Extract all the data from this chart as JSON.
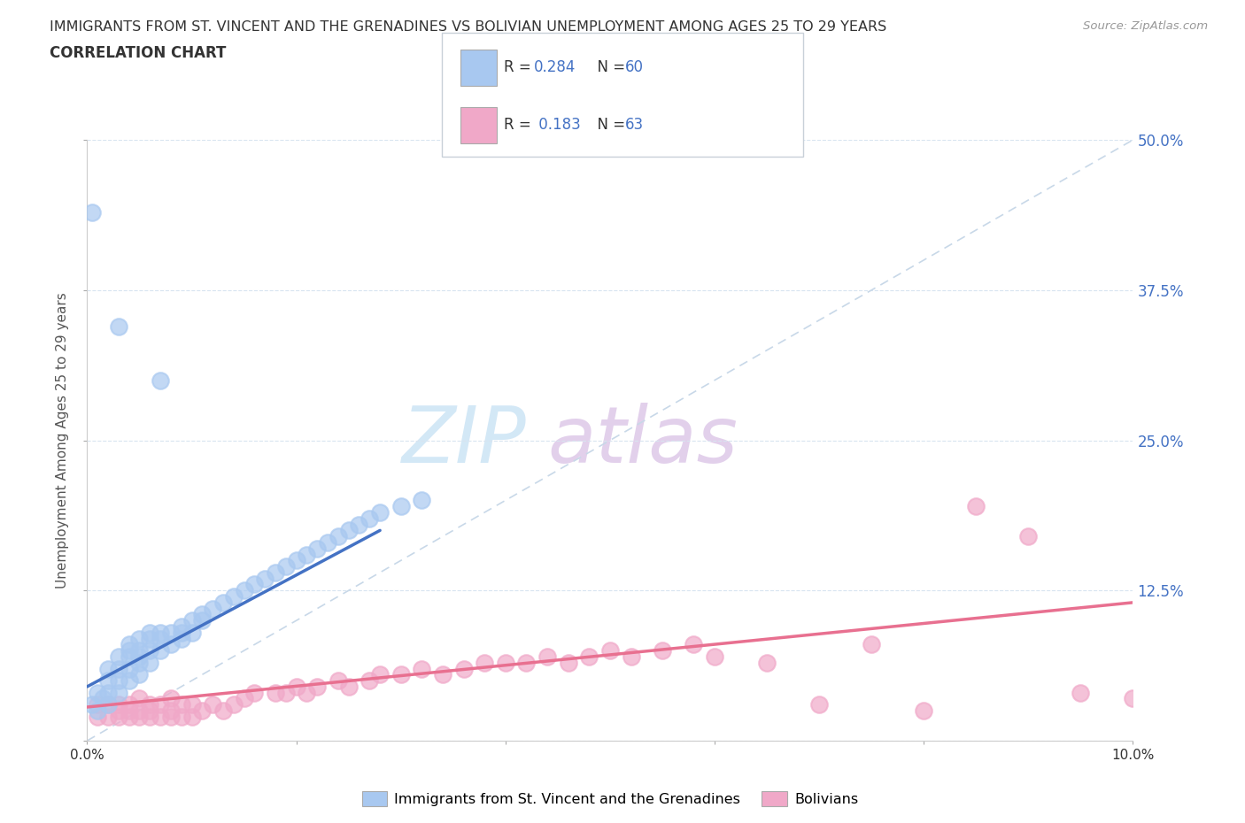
{
  "title_line1": "IMMIGRANTS FROM ST. VINCENT AND THE GRENADINES VS BOLIVIAN UNEMPLOYMENT AMONG AGES 25 TO 29 YEARS",
  "title_line2": "CORRELATION CHART",
  "source_text": "Source: ZipAtlas.com",
  "ylabel": "Unemployment Among Ages 25 to 29 years",
  "xmin": 0.0,
  "xmax": 0.1,
  "ymin": 0.0,
  "ymax": 0.5,
  "ytick_vals": [
    0.0,
    0.125,
    0.25,
    0.375,
    0.5
  ],
  "ytick_labels": [
    "",
    "12.5%",
    "25.0%",
    "37.5%",
    "50.0%"
  ],
  "xtick_vals": [
    0.0,
    0.02,
    0.04,
    0.06,
    0.08,
    0.1
  ],
  "xtick_labels": [
    "0.0%",
    "",
    "",
    "",
    "",
    "10.0%"
  ],
  "blue_color": "#a8c8f0",
  "pink_color": "#f0a8c8",
  "blue_line_color": "#4472c4",
  "pink_line_color": "#e87090",
  "diag_color": "#c8d8e8",
  "grid_color": "#d8e4f0",
  "legend_box_color": "#f0f4f8",
  "legend_border_color": "#c8d0d8",
  "stat_color": "#4472c4",
  "title_color": "#333333",
  "source_color": "#999999",
  "ylabel_color": "#555555",
  "ytick_color": "#4472c4",
  "blue_scatter_x": [
    0.0005,
    0.001,
    0.001,
    0.0015,
    0.002,
    0.002,
    0.002,
    0.002,
    0.003,
    0.003,
    0.003,
    0.003,
    0.004,
    0.004,
    0.004,
    0.004,
    0.004,
    0.005,
    0.005,
    0.005,
    0.005,
    0.005,
    0.006,
    0.006,
    0.006,
    0.006,
    0.007,
    0.007,
    0.007,
    0.008,
    0.008,
    0.009,
    0.009,
    0.009,
    0.01,
    0.01,
    0.011,
    0.011,
    0.012,
    0.013,
    0.014,
    0.015,
    0.016,
    0.017,
    0.018,
    0.019,
    0.02,
    0.021,
    0.022,
    0.023,
    0.024,
    0.025,
    0.026,
    0.027,
    0.028,
    0.03,
    0.032,
    0.0005,
    0.003,
    0.007
  ],
  "blue_scatter_y": [
    0.03,
    0.025,
    0.04,
    0.035,
    0.03,
    0.04,
    0.05,
    0.06,
    0.04,
    0.05,
    0.06,
    0.07,
    0.05,
    0.06,
    0.07,
    0.075,
    0.08,
    0.055,
    0.065,
    0.07,
    0.075,
    0.085,
    0.065,
    0.075,
    0.085,
    0.09,
    0.075,
    0.085,
    0.09,
    0.08,
    0.09,
    0.085,
    0.09,
    0.095,
    0.09,
    0.1,
    0.1,
    0.105,
    0.11,
    0.115,
    0.12,
    0.125,
    0.13,
    0.135,
    0.14,
    0.145,
    0.15,
    0.155,
    0.16,
    0.165,
    0.17,
    0.175,
    0.18,
    0.185,
    0.19,
    0.195,
    0.2,
    0.44,
    0.345,
    0.3
  ],
  "pink_scatter_x": [
    0.001,
    0.001,
    0.002,
    0.002,
    0.003,
    0.003,
    0.003,
    0.004,
    0.004,
    0.004,
    0.005,
    0.005,
    0.005,
    0.006,
    0.006,
    0.006,
    0.007,
    0.007,
    0.008,
    0.008,
    0.008,
    0.009,
    0.009,
    0.01,
    0.01,
    0.011,
    0.012,
    0.013,
    0.014,
    0.015,
    0.016,
    0.018,
    0.019,
    0.02,
    0.021,
    0.022,
    0.024,
    0.025,
    0.027,
    0.028,
    0.03,
    0.032,
    0.034,
    0.036,
    0.038,
    0.04,
    0.042,
    0.044,
    0.046,
    0.048,
    0.05,
    0.052,
    0.055,
    0.058,
    0.06,
    0.065,
    0.07,
    0.075,
    0.08,
    0.085,
    0.09,
    0.095,
    0.1
  ],
  "pink_scatter_y": [
    0.02,
    0.03,
    0.02,
    0.03,
    0.02,
    0.025,
    0.03,
    0.02,
    0.025,
    0.03,
    0.02,
    0.025,
    0.035,
    0.02,
    0.025,
    0.03,
    0.02,
    0.03,
    0.02,
    0.025,
    0.035,
    0.02,
    0.03,
    0.02,
    0.03,
    0.025,
    0.03,
    0.025,
    0.03,
    0.035,
    0.04,
    0.04,
    0.04,
    0.045,
    0.04,
    0.045,
    0.05,
    0.045,
    0.05,
    0.055,
    0.055,
    0.06,
    0.055,
    0.06,
    0.065,
    0.065,
    0.065,
    0.07,
    0.065,
    0.07,
    0.075,
    0.07,
    0.075,
    0.08,
    0.07,
    0.065,
    0.03,
    0.08,
    0.025,
    0.195,
    0.17,
    0.04,
    0.035
  ],
  "blue_trend_x": [
    0.0,
    0.028
  ],
  "blue_trend_y": [
    0.045,
    0.175
  ],
  "pink_trend_x": [
    0.0,
    0.1
  ],
  "pink_trend_y": [
    0.028,
    0.115
  ]
}
